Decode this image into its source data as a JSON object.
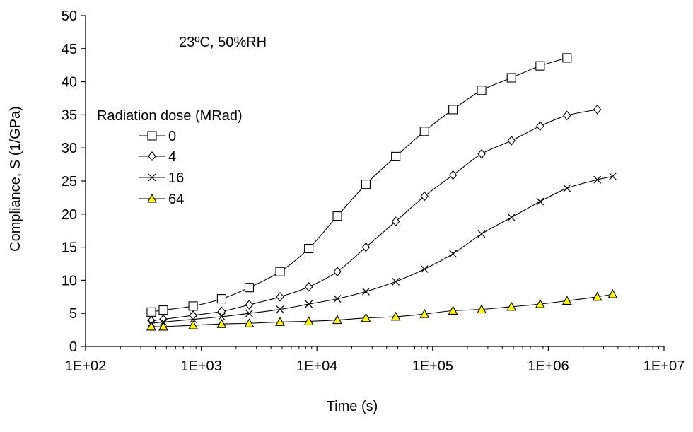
{
  "chart_data": {
    "type": "scatter",
    "xscale": "log",
    "xlim": [
      100,
      10000000
    ],
    "ylim": [
      0,
      50
    ],
    "xticks": [
      "1E+02",
      "1E+03",
      "1E+04",
      "1E+05",
      "1E+06",
      "1E+07"
    ],
    "yticks": [
      "0",
      "5",
      "10",
      "15",
      "20",
      "25",
      "30",
      "35",
      "40",
      "45",
      "50"
    ],
    "xlabel": "Time (s)",
    "ylabel": "Compliance, S (1/GPa)",
    "annotation": "23ºC, 50%RH",
    "legend_title": "Radiation dose (MRad)",
    "legend_position": "upper-left",
    "grid": false,
    "lines": "smooth line with markers",
    "series": [
      {
        "name": "0",
        "marker": "square",
        "fill": "#ffffff",
        "x": [
          370,
          470,
          850,
          1500,
          2600,
          4800,
          8500,
          15000,
          26500,
          48000,
          85000,
          150000,
          265000,
          480000,
          850000,
          1450000
        ],
        "y": [
          5.2,
          5.5,
          6.1,
          7.2,
          8.9,
          11.3,
          14.8,
          19.7,
          24.5,
          28.7,
          32.5,
          35.8,
          38.7,
          40.6,
          42.4,
          43.6
        ]
      },
      {
        "name": "4",
        "marker": "diamond",
        "fill": "#ffffff",
        "x": [
          370,
          470,
          850,
          1500,
          2600,
          4800,
          8500,
          15000,
          26500,
          48000,
          85000,
          150000,
          265000,
          480000,
          850000,
          1450000,
          2650000
        ],
        "y": [
          3.9,
          4.1,
          4.7,
          5.3,
          6.3,
          7.5,
          9.0,
          11.3,
          15.0,
          18.9,
          22.7,
          25.9,
          29.1,
          31.1,
          33.3,
          34.9,
          35.8
        ]
      },
      {
        "name": "16",
        "marker": "x",
        "fill": "none",
        "x": [
          370,
          470,
          850,
          1500,
          2600,
          4800,
          8500,
          15000,
          26500,
          48000,
          85000,
          150000,
          265000,
          480000,
          850000,
          1450000,
          2650000,
          3600000
        ],
        "y": [
          3.5,
          3.7,
          4.1,
          4.5,
          5.0,
          5.6,
          6.4,
          7.2,
          8.3,
          9.8,
          11.7,
          14.0,
          17.0,
          19.5,
          21.9,
          23.9,
          25.2,
          25.7
        ]
      },
      {
        "name": "64",
        "marker": "triangle",
        "fill": "#ffff00",
        "x": [
          370,
          470,
          850,
          1500,
          2600,
          4800,
          8500,
          15000,
          26500,
          48000,
          85000,
          150000,
          265000,
          480000,
          850000,
          1450000,
          2650000,
          3600000
        ],
        "y": [
          3.0,
          3.0,
          3.2,
          3.4,
          3.5,
          3.7,
          3.8,
          4.0,
          4.3,
          4.5,
          4.9,
          5.4,
          5.6,
          6.0,
          6.4,
          6.9,
          7.5,
          7.9
        ]
      }
    ]
  }
}
